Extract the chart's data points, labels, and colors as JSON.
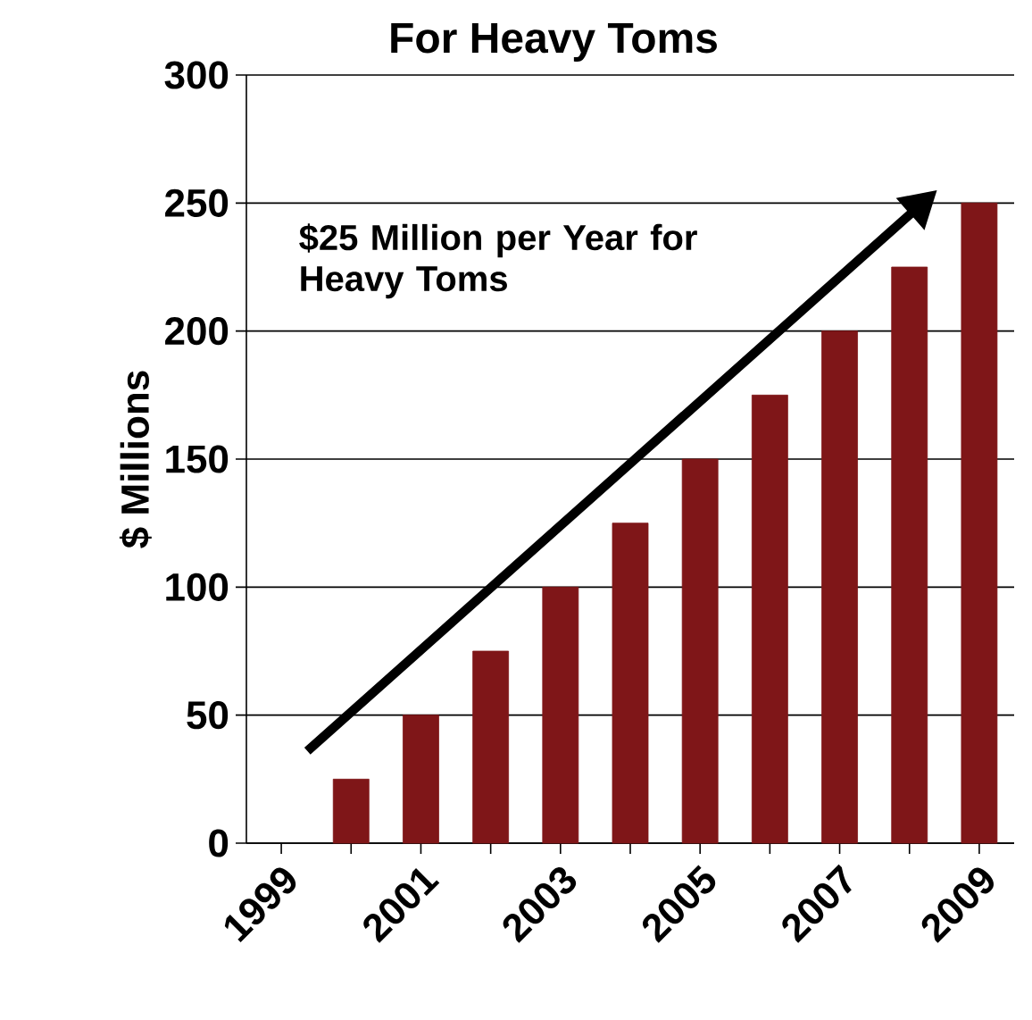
{
  "chart_data": {
    "type": "bar",
    "title": "For Heavy Toms",
    "ylabel": "$ Millions",
    "categories": [
      "1999",
      null,
      "2001",
      null,
      "2003",
      null,
      "2005",
      null,
      "2007",
      null,
      "2009"
    ],
    "values": [
      null,
      25,
      50,
      75,
      100,
      125,
      150,
      175,
      200,
      225,
      250
    ],
    "color": "#7f1618",
    "ylim": [
      0,
      300
    ],
    "yticks": [
      0,
      50,
      100,
      150,
      200,
      250,
      300
    ],
    "grid": "y",
    "annotations": [
      "$25 Million per Year for Heavy Toms"
    ]
  }
}
